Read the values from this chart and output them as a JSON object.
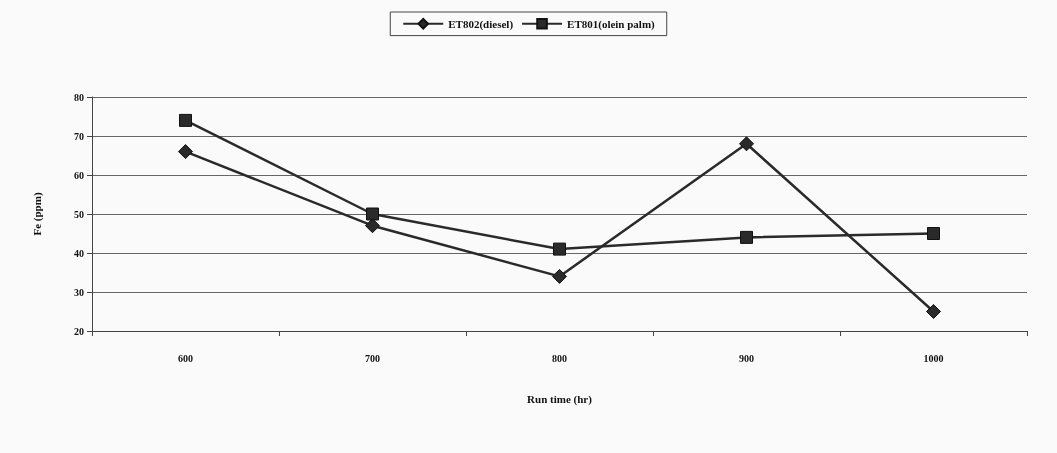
{
  "chart_data": {
    "type": "line",
    "xlabel": "Run time (hr)",
    "ylabel": "Fe (ppm)",
    "categories": [
      "600",
      "700",
      "800",
      "900",
      "1000"
    ],
    "series": [
      {
        "name": "ET802(diesel)",
        "color": "#2a2a2a",
        "marker": "diamond",
        "values": [
          66,
          47,
          34,
          68,
          25
        ]
      },
      {
        "name": "ET801(olein palm)",
        "color": "#2a2a2a",
        "marker": "square",
        "values": [
          74,
          50,
          41,
          44,
          45
        ]
      }
    ],
    "ylim": [
      20,
      80
    ],
    "yticks": [
      20,
      30,
      40,
      50,
      60,
      70,
      80
    ],
    "grid": "y",
    "legend": "top",
    "line_style": "solid"
  }
}
